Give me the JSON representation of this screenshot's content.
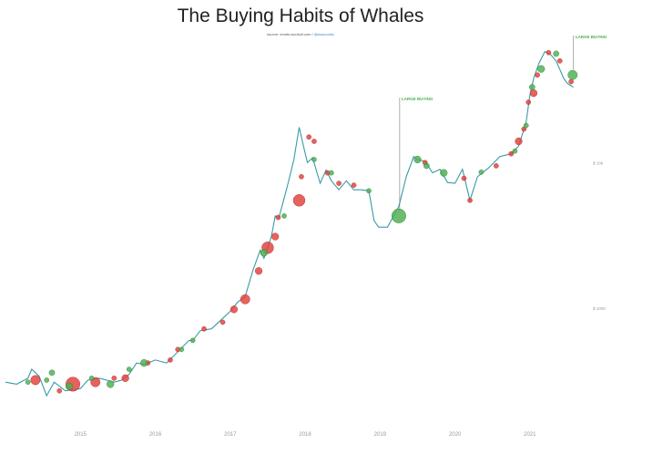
{
  "title": "The Buying Habits of Whales",
  "source_prefix": "source: charts.woobull.com",
  "source_sep": " / ",
  "source_handle": "@woonomic",
  "colors": {
    "price_line": "#3a9aa8",
    "buy": "#4caf50",
    "sell": "#e0403a",
    "annotation_line": "#777777",
    "annotation_text": "#4caf50",
    "axis_text": "#999999"
  },
  "chart_data": {
    "type": "scatter",
    "title": "The Buying Habits of Whales",
    "y_scale": "log",
    "xlim": [
      2014.0,
      2021.95
    ],
    "ylim": [
      160,
      85000
    ],
    "x_ticks": [
      2015,
      2016,
      2017,
      2018,
      2019,
      2020,
      2021
    ],
    "x_tick_labels": [
      "2015",
      "2016",
      "2017",
      "2018",
      "2019",
      "2020",
      "2021"
    ],
    "y_ticks": [
      1000,
      10000
    ],
    "y_tick_labels": [
      "$ 1000",
      "$ 10k"
    ],
    "price": {
      "x": [
        2014.0,
        2014.15,
        2014.3,
        2014.35,
        2014.45,
        2014.55,
        2014.65,
        2014.8,
        2015.0,
        2015.1,
        2015.25,
        2015.45,
        2015.55,
        2015.65,
        2015.75,
        2015.85,
        2016.0,
        2016.15,
        2016.3,
        2016.45,
        2016.5,
        2016.6,
        2016.75,
        2016.9,
        2017.0,
        2017.1,
        2017.2,
        2017.3,
        2017.4,
        2017.45,
        2017.55,
        2017.6,
        2017.65,
        2017.75,
        2017.85,
        2017.92,
        2017.97,
        2018.03,
        2018.1,
        2018.2,
        2018.28,
        2018.35,
        2018.45,
        2018.55,
        2018.65,
        2018.75,
        2018.85,
        2018.92,
        2018.98,
        2019.1,
        2019.25,
        2019.35,
        2019.45,
        2019.5,
        2019.6,
        2019.7,
        2019.8,
        2019.9,
        2020.0,
        2020.1,
        2020.2,
        2020.3,
        2020.45,
        2020.6,
        2020.75,
        2020.85,
        2020.95,
        2021.0,
        2021.05,
        2021.12,
        2021.2,
        2021.28,
        2021.35,
        2021.45,
        2021.5,
        2021.58
      ],
      "y": [
        310,
        300,
        330,
        380,
        340,
        250,
        310,
        270,
        280,
        320,
        330,
        310,
        320,
        350,
        420,
        410,
        440,
        420,
        500,
        600,
        600,
        700,
        720,
        850,
        950,
        1100,
        1200,
        1800,
        2500,
        2200,
        3100,
        4300,
        4200,
        6500,
        10500,
        17500,
        13500,
        10000,
        10800,
        7200,
        8900,
        7500,
        6500,
        7500,
        6500,
        6500,
        6400,
        4000,
        3600,
        3600,
        5000,
        8000,
        11000,
        10500,
        10200,
        8500,
        9000,
        7300,
        7200,
        9000,
        5500,
        8000,
        9200,
        11000,
        11500,
        13000,
        19000,
        29000,
        38000,
        48000,
        58000,
        55000,
        50000,
        38000,
        35000,
        33000
      ]
    },
    "buys": [
      {
        "x": 2014.3,
        "y": 310,
        "s": 1.0
      },
      {
        "x": 2014.55,
        "y": 320,
        "s": 1.0
      },
      {
        "x": 2014.62,
        "y": 360,
        "s": 1.2
      },
      {
        "x": 2014.85,
        "y": 290,
        "s": 1.5
      },
      {
        "x": 2015.15,
        "y": 330,
        "s": 1.0
      },
      {
        "x": 2015.4,
        "y": 300,
        "s": 1.5
      },
      {
        "x": 2015.65,
        "y": 380,
        "s": 1.0
      },
      {
        "x": 2015.85,
        "y": 420,
        "s": 1.5
      },
      {
        "x": 2016.35,
        "y": 520,
        "s": 1.0
      },
      {
        "x": 2016.5,
        "y": 600,
        "s": 1.0
      },
      {
        "x": 2017.45,
        "y": 2400,
        "s": 1.5
      },
      {
        "x": 2017.72,
        "y": 4300,
        "s": 1.0
      },
      {
        "x": 2018.12,
        "y": 10500,
        "s": 1.0
      },
      {
        "x": 2018.35,
        "y": 8500,
        "s": 1.0
      },
      {
        "x": 2018.85,
        "y": 6400,
        "s": 1.0
      },
      {
        "x": 2019.25,
        "y": 4300,
        "s": 3.0
      },
      {
        "x": 2019.5,
        "y": 10500,
        "s": 1.5
      },
      {
        "x": 2019.62,
        "y": 9500,
        "s": 1.2
      },
      {
        "x": 2019.85,
        "y": 8500,
        "s": 1.5
      },
      {
        "x": 2020.35,
        "y": 8600,
        "s": 1.0
      },
      {
        "x": 2020.8,
        "y": 12000,
        "s": 1.0
      },
      {
        "x": 2020.95,
        "y": 18000,
        "s": 1.0
      },
      {
        "x": 2021.03,
        "y": 33000,
        "s": 1.2
      },
      {
        "x": 2021.15,
        "y": 44000,
        "s": 1.5
      },
      {
        "x": 2021.35,
        "y": 56000,
        "s": 1.2
      },
      {
        "x": 2021.57,
        "y": 40000,
        "s": 2.0
      }
    ],
    "sells": [
      {
        "x": 2014.4,
        "y": 320,
        "s": 2.0
      },
      {
        "x": 2014.72,
        "y": 270,
        "s": 1.0
      },
      {
        "x": 2014.9,
        "y": 300,
        "s": 3.0
      },
      {
        "x": 2015.2,
        "y": 310,
        "s": 2.0
      },
      {
        "x": 2015.45,
        "y": 330,
        "s": 1.0
      },
      {
        "x": 2015.6,
        "y": 330,
        "s": 1.5
      },
      {
        "x": 2015.9,
        "y": 420,
        "s": 1.0
      },
      {
        "x": 2016.2,
        "y": 440,
        "s": 1.0
      },
      {
        "x": 2016.3,
        "y": 520,
        "s": 1.0
      },
      {
        "x": 2016.65,
        "y": 720,
        "s": 1.0
      },
      {
        "x": 2016.9,
        "y": 800,
        "s": 1.0
      },
      {
        "x": 2017.05,
        "y": 980,
        "s": 1.5
      },
      {
        "x": 2017.2,
        "y": 1150,
        "s": 2.0
      },
      {
        "x": 2017.38,
        "y": 1800,
        "s": 1.5
      },
      {
        "x": 2017.5,
        "y": 2600,
        "s": 2.5
      },
      {
        "x": 2017.6,
        "y": 3100,
        "s": 1.5
      },
      {
        "x": 2017.64,
        "y": 4200,
        "s": 1.0
      },
      {
        "x": 2017.92,
        "y": 5500,
        "s": 2.5
      },
      {
        "x": 2017.95,
        "y": 8000,
        "s": 1.0
      },
      {
        "x": 2018.05,
        "y": 15000,
        "s": 1.0
      },
      {
        "x": 2018.12,
        "y": 14000,
        "s": 1.0
      },
      {
        "x": 2018.3,
        "y": 8500,
        "s": 1.0
      },
      {
        "x": 2018.45,
        "y": 7200,
        "s": 1.0
      },
      {
        "x": 2018.65,
        "y": 7000,
        "s": 1.0
      },
      {
        "x": 2019.6,
        "y": 10000,
        "s": 1.0
      },
      {
        "x": 2020.12,
        "y": 7800,
        "s": 1.0
      },
      {
        "x": 2020.2,
        "y": 5500,
        "s": 1.0
      },
      {
        "x": 2020.55,
        "y": 9500,
        "s": 1.0
      },
      {
        "x": 2020.75,
        "y": 11500,
        "s": 1.0
      },
      {
        "x": 2020.85,
        "y": 14000,
        "s": 1.5
      },
      {
        "x": 2020.92,
        "y": 17000,
        "s": 1.0
      },
      {
        "x": 2020.98,
        "y": 26000,
        "s": 1.0
      },
      {
        "x": 2021.05,
        "y": 30000,
        "s": 1.5
      },
      {
        "x": 2021.1,
        "y": 40000,
        "s": 1.0
      },
      {
        "x": 2021.25,
        "y": 57000,
        "s": 1.0
      },
      {
        "x": 2021.4,
        "y": 50000,
        "s": 1.0
      },
      {
        "x": 2021.55,
        "y": 36000,
        "s": 1.0
      }
    ],
    "annotations": [
      {
        "text": "LARGE BUYING",
        "x": 2019.25,
        "y": 4300
      },
      {
        "text": "LARGE BUYING",
        "x": 2021.57,
        "y": 40000
      }
    ]
  }
}
